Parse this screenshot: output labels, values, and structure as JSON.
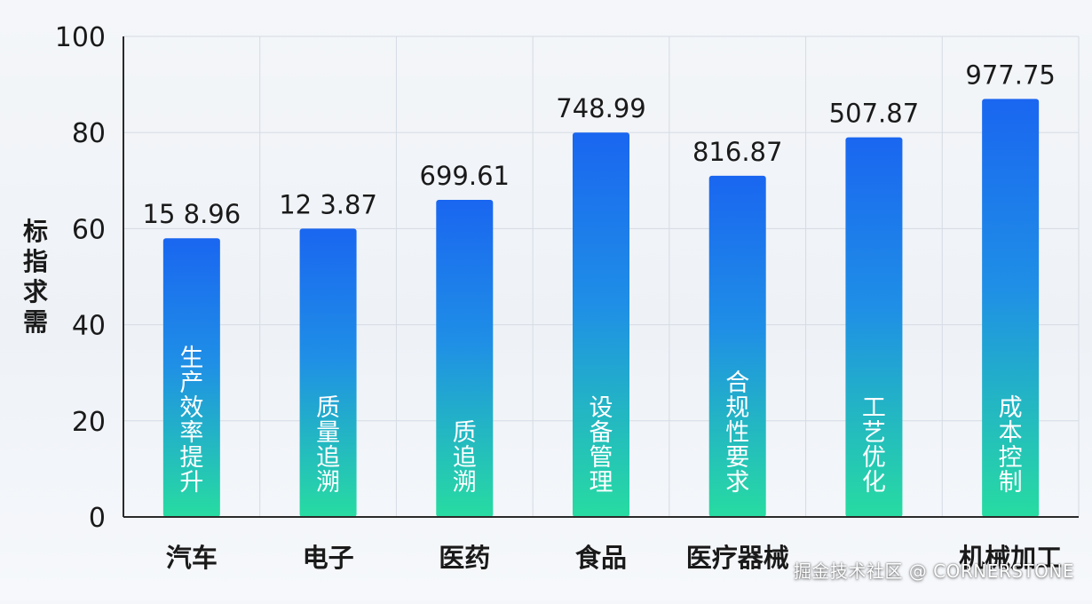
{
  "chart_data": {
    "type": "bar",
    "ylabel": "标指求需",
    "ylim": [
      0,
      100
    ],
    "yticks": [
      0,
      20,
      40,
      60,
      80,
      100
    ],
    "grid": true,
    "categories": [
      "汽车",
      "电子",
      "医药",
      "食品",
      "医疗器械",
      "",
      "机械加工"
    ],
    "values": [
      58,
      60,
      66,
      80,
      71,
      79,
      87
    ],
    "data_labels": [
      "15 8.96",
      "12 3.87",
      "699.61",
      "748.99",
      "816.87",
      "507.87",
      "977.75"
    ],
    "bar_labels": [
      "生产效率提升",
      "质量追溯",
      "质追溯",
      "设备管理",
      "合规性要求",
      "工艺优化",
      "成本控制"
    ],
    "colors": {
      "bar_top": "#1a66f0",
      "bar_bottom": "#27dca1",
      "axis": "#2a2a2a",
      "grid": "#d5dbe4",
      "text": "#1a1a1a"
    }
  },
  "watermark": "掘金技术社区 @ CORNERSTONE"
}
